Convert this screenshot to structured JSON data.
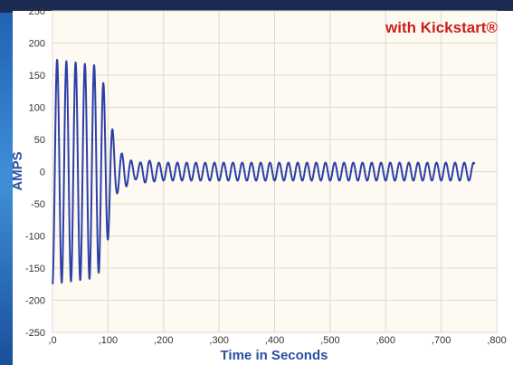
{
  "chart_data": {
    "type": "line",
    "title": "with Kickstart®",
    "title_color": "#c8201c",
    "xlabel": "Time in Seconds",
    "ylabel": "AMPS",
    "label_color": "#2a4fa0",
    "series_color": "#2b40a8",
    "xlim": [
      0,
      0.8
    ],
    "ylim": [
      -250,
      250
    ],
    "x_ticks": [
      0,
      0.1,
      0.2,
      0.3,
      0.4,
      0.5,
      0.6,
      0.7,
      0.8
    ],
    "x_tick_labels": [
      ",0",
      ",100",
      ",200",
      ",300",
      ",400",
      ",500",
      ",600",
      ",700",
      ",800"
    ],
    "y_ticks": [
      250,
      200,
      150,
      100,
      50,
      0,
      -50,
      -100,
      -150,
      -200,
      -250
    ],
    "y_tick_labels": [
      "250",
      "200",
      "150",
      "100",
      "50",
      "0",
      "-50",
      "-100",
      "-150",
      "-200",
      "-250"
    ],
    "grid": true,
    "series": [
      {
        "frequency_hz": 60,
        "x_end": 0.76,
        "envelope": [
          {
            "x": 0.0,
            "amp": 175
          },
          {
            "x": 0.08,
            "amp": 165
          },
          {
            "x": 0.095,
            "amp": 130
          },
          {
            "x": 0.105,
            "amp": 80
          },
          {
            "x": 0.115,
            "amp": 35
          },
          {
            "x": 0.13,
            "amp": 25
          },
          {
            "x": 0.15,
            "amp": 12
          },
          {
            "x": 0.17,
            "amp": 18
          },
          {
            "x": 0.19,
            "amp": 14
          },
          {
            "x": 0.76,
            "amp": 14
          }
        ]
      }
    ]
  }
}
